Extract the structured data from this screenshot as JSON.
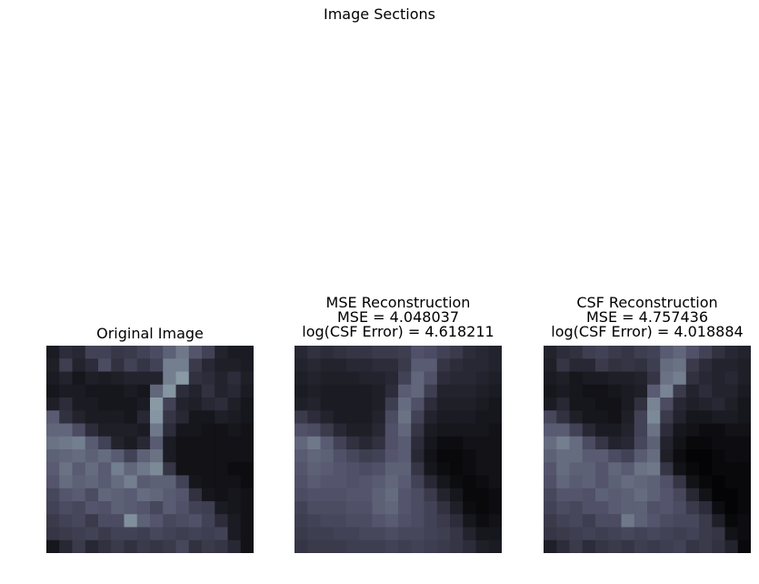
{
  "suptitle": "Image Sections",
  "colors": {
    "colormap": "bone"
  },
  "chart_data": [
    {
      "type": "heatmap",
      "title_lines": [
        "Original Image"
      ],
      "colormap": "bone",
      "value_range": [
        0,
        1
      ],
      "grid": false,
      "axes_visible": false,
      "values": [
        [
          0.12,
          0.2,
          0.18,
          0.3,
          0.3,
          0.25,
          0.26,
          0.3,
          0.34,
          0.42,
          0.5,
          0.38,
          0.3,
          0.16,
          0.12,
          0.12
        ],
        [
          0.14,
          0.28,
          0.16,
          0.2,
          0.34,
          0.22,
          0.3,
          0.24,
          0.3,
          0.52,
          0.52,
          0.26,
          0.18,
          0.14,
          0.14,
          0.12
        ],
        [
          0.12,
          0.16,
          0.1,
          0.14,
          0.12,
          0.14,
          0.16,
          0.16,
          0.16,
          0.52,
          0.62,
          0.22,
          0.2,
          0.16,
          0.2,
          0.14
        ],
        [
          0.1,
          0.12,
          0.12,
          0.1,
          0.1,
          0.1,
          0.12,
          0.1,
          0.44,
          0.6,
          0.2,
          0.16,
          0.22,
          0.16,
          0.18,
          0.12
        ],
        [
          0.14,
          0.2,
          0.12,
          0.12,
          0.1,
          0.1,
          0.1,
          0.12,
          0.62,
          0.3,
          0.16,
          0.14,
          0.18,
          0.2,
          0.14,
          0.1
        ],
        [
          0.4,
          0.22,
          0.16,
          0.12,
          0.12,
          0.12,
          0.1,
          0.18,
          0.6,
          0.24,
          0.18,
          0.1,
          0.1,
          0.14,
          0.12,
          0.1
        ],
        [
          0.44,
          0.44,
          0.34,
          0.2,
          0.14,
          0.14,
          0.14,
          0.12,
          0.5,
          0.2,
          0.1,
          0.1,
          0.08,
          0.08,
          0.1,
          0.08
        ],
        [
          0.48,
          0.5,
          0.52,
          0.4,
          0.3,
          0.16,
          0.12,
          0.18,
          0.4,
          0.12,
          0.08,
          0.08,
          0.08,
          0.08,
          0.08,
          0.08
        ],
        [
          0.42,
          0.44,
          0.46,
          0.42,
          0.46,
          0.4,
          0.3,
          0.42,
          0.48,
          0.12,
          0.08,
          0.08,
          0.08,
          0.08,
          0.08,
          0.08
        ],
        [
          0.4,
          0.48,
          0.4,
          0.46,
          0.4,
          0.52,
          0.44,
          0.5,
          0.56,
          0.24,
          0.08,
          0.08,
          0.08,
          0.08,
          0.06,
          0.06
        ],
        [
          0.38,
          0.46,
          0.42,
          0.44,
          0.4,
          0.46,
          0.52,
          0.4,
          0.42,
          0.42,
          0.3,
          0.1,
          0.08,
          0.08,
          0.08,
          0.06
        ],
        [
          0.32,
          0.38,
          0.4,
          0.34,
          0.44,
          0.42,
          0.4,
          0.46,
          0.44,
          0.4,
          0.38,
          0.22,
          0.1,
          0.08,
          0.1,
          0.08
        ],
        [
          0.3,
          0.34,
          0.32,
          0.38,
          0.36,
          0.42,
          0.4,
          0.38,
          0.32,
          0.4,
          0.36,
          0.3,
          0.28,
          0.12,
          0.1,
          0.08
        ],
        [
          0.26,
          0.3,
          0.32,
          0.26,
          0.34,
          0.34,
          0.58,
          0.42,
          0.38,
          0.32,
          0.34,
          0.36,
          0.3,
          0.2,
          0.12,
          0.08
        ],
        [
          0.24,
          0.26,
          0.28,
          0.3,
          0.26,
          0.3,
          0.3,
          0.28,
          0.32,
          0.3,
          0.28,
          0.3,
          0.28,
          0.3,
          0.12,
          0.08
        ],
        [
          0.1,
          0.18,
          0.26,
          0.18,
          0.22,
          0.26,
          0.22,
          0.26,
          0.24,
          0.26,
          0.32,
          0.22,
          0.26,
          0.24,
          0.18,
          0.08
        ]
      ]
    },
    {
      "type": "heatmap",
      "title_lines": [
        "MSE Reconstruction",
        "MSE = 4.048037",
        "log(CSF Error) = 4.618211"
      ],
      "colormap": "bone",
      "value_range": [
        0,
        1
      ],
      "grid": false,
      "axes_visible": false,
      "values": [
        [
          0.18,
          0.22,
          0.2,
          0.22,
          0.24,
          0.24,
          0.26,
          0.26,
          0.28,
          0.36,
          0.34,
          0.3,
          0.26,
          0.2,
          0.18,
          0.16
        ],
        [
          0.16,
          0.18,
          0.16,
          0.16,
          0.18,
          0.18,
          0.2,
          0.2,
          0.26,
          0.4,
          0.4,
          0.24,
          0.2,
          0.18,
          0.18,
          0.16
        ],
        [
          0.14,
          0.16,
          0.14,
          0.14,
          0.14,
          0.16,
          0.16,
          0.18,
          0.3,
          0.44,
          0.36,
          0.2,
          0.18,
          0.18,
          0.16,
          0.14
        ],
        [
          0.12,
          0.14,
          0.12,
          0.12,
          0.12,
          0.12,
          0.14,
          0.2,
          0.4,
          0.44,
          0.28,
          0.16,
          0.16,
          0.16,
          0.14,
          0.12
        ],
        [
          0.14,
          0.16,
          0.12,
          0.12,
          0.12,
          0.12,
          0.14,
          0.28,
          0.46,
          0.36,
          0.2,
          0.14,
          0.14,
          0.14,
          0.12,
          0.1
        ],
        [
          0.26,
          0.2,
          0.16,
          0.12,
          0.12,
          0.12,
          0.16,
          0.34,
          0.48,
          0.3,
          0.16,
          0.12,
          0.12,
          0.12,
          0.1,
          0.1
        ],
        [
          0.36,
          0.34,
          0.26,
          0.18,
          0.14,
          0.14,
          0.18,
          0.36,
          0.44,
          0.24,
          0.12,
          0.1,
          0.1,
          0.1,
          0.1,
          0.08
        ],
        [
          0.44,
          0.5,
          0.4,
          0.3,
          0.22,
          0.18,
          0.22,
          0.36,
          0.4,
          0.2,
          0.1,
          0.06,
          0.06,
          0.08,
          0.08,
          0.08
        ],
        [
          0.4,
          0.44,
          0.42,
          0.36,
          0.32,
          0.28,
          0.3,
          0.38,
          0.4,
          0.18,
          0.08,
          0.04,
          0.04,
          0.06,
          0.08,
          0.08
        ],
        [
          0.38,
          0.42,
          0.4,
          0.38,
          0.36,
          0.34,
          0.36,
          0.42,
          0.42,
          0.24,
          0.1,
          0.06,
          0.04,
          0.06,
          0.08,
          0.08
        ],
        [
          0.36,
          0.4,
          0.38,
          0.38,
          0.36,
          0.38,
          0.4,
          0.44,
          0.4,
          0.3,
          0.18,
          0.1,
          0.06,
          0.04,
          0.06,
          0.08
        ],
        [
          0.34,
          0.36,
          0.36,
          0.36,
          0.38,
          0.38,
          0.42,
          0.46,
          0.38,
          0.34,
          0.26,
          0.16,
          0.1,
          0.04,
          0.04,
          0.06
        ],
        [
          0.3,
          0.34,
          0.34,
          0.34,
          0.36,
          0.36,
          0.42,
          0.44,
          0.38,
          0.34,
          0.3,
          0.22,
          0.14,
          0.06,
          0.04,
          0.06
        ],
        [
          0.28,
          0.3,
          0.32,
          0.32,
          0.34,
          0.34,
          0.38,
          0.4,
          0.36,
          0.34,
          0.3,
          0.26,
          0.2,
          0.1,
          0.06,
          0.08
        ],
        [
          0.26,
          0.28,
          0.28,
          0.3,
          0.3,
          0.32,
          0.32,
          0.34,
          0.32,
          0.32,
          0.3,
          0.28,
          0.24,
          0.16,
          0.1,
          0.1
        ],
        [
          0.24,
          0.26,
          0.26,
          0.26,
          0.28,
          0.28,
          0.28,
          0.3,
          0.28,
          0.3,
          0.28,
          0.26,
          0.24,
          0.2,
          0.14,
          0.12
        ]
      ]
    },
    {
      "type": "heatmap",
      "title_lines": [
        "CSF Reconstruction",
        "MSE = 4.757436",
        "log(CSF Error) = 4.018884"
      ],
      "colormap": "bone",
      "value_range": [
        0,
        1
      ],
      "grid": false,
      "axes_visible": false,
      "values": [
        [
          0.16,
          0.2,
          0.22,
          0.28,
          0.3,
          0.26,
          0.24,
          0.28,
          0.3,
          0.4,
          0.44,
          0.36,
          0.3,
          0.22,
          0.18,
          0.16
        ],
        [
          0.14,
          0.24,
          0.18,
          0.18,
          0.26,
          0.22,
          0.24,
          0.22,
          0.28,
          0.46,
          0.48,
          0.26,
          0.2,
          0.16,
          0.16,
          0.14
        ],
        [
          0.12,
          0.14,
          0.1,
          0.12,
          0.12,
          0.14,
          0.14,
          0.16,
          0.24,
          0.48,
          0.52,
          0.22,
          0.18,
          0.16,
          0.18,
          0.14
        ],
        [
          0.1,
          0.12,
          0.1,
          0.08,
          0.08,
          0.1,
          0.12,
          0.14,
          0.4,
          0.54,
          0.26,
          0.16,
          0.2,
          0.16,
          0.16,
          0.12
        ],
        [
          0.12,
          0.18,
          0.1,
          0.1,
          0.08,
          0.08,
          0.12,
          0.22,
          0.54,
          0.34,
          0.18,
          0.14,
          0.16,
          0.18,
          0.14,
          0.1
        ],
        [
          0.32,
          0.22,
          0.14,
          0.1,
          0.1,
          0.08,
          0.14,
          0.3,
          0.56,
          0.26,
          0.16,
          0.1,
          0.1,
          0.12,
          0.12,
          0.1
        ],
        [
          0.4,
          0.4,
          0.3,
          0.18,
          0.12,
          0.12,
          0.16,
          0.3,
          0.48,
          0.2,
          0.1,
          0.08,
          0.06,
          0.06,
          0.08,
          0.08
        ],
        [
          0.46,
          0.52,
          0.46,
          0.34,
          0.24,
          0.16,
          0.18,
          0.32,
          0.42,
          0.16,
          0.08,
          0.04,
          0.04,
          0.06,
          0.06,
          0.06
        ],
        [
          0.42,
          0.46,
          0.46,
          0.4,
          0.4,
          0.34,
          0.3,
          0.4,
          0.46,
          0.14,
          0.06,
          0.02,
          0.02,
          0.04,
          0.06,
          0.06
        ],
        [
          0.38,
          0.46,
          0.42,
          0.42,
          0.38,
          0.44,
          0.4,
          0.48,
          0.5,
          0.24,
          0.08,
          0.04,
          0.02,
          0.04,
          0.04,
          0.04
        ],
        [
          0.36,
          0.44,
          0.4,
          0.42,
          0.38,
          0.42,
          0.46,
          0.44,
          0.42,
          0.36,
          0.24,
          0.08,
          0.04,
          0.02,
          0.04,
          0.04
        ],
        [
          0.32,
          0.38,
          0.38,
          0.36,
          0.42,
          0.4,
          0.42,
          0.46,
          0.42,
          0.38,
          0.32,
          0.18,
          0.08,
          0.02,
          0.02,
          0.04
        ],
        [
          0.3,
          0.34,
          0.32,
          0.36,
          0.36,
          0.4,
          0.42,
          0.42,
          0.36,
          0.38,
          0.34,
          0.26,
          0.2,
          0.06,
          0.02,
          0.04
        ],
        [
          0.26,
          0.3,
          0.32,
          0.28,
          0.34,
          0.34,
          0.5,
          0.42,
          0.38,
          0.34,
          0.32,
          0.32,
          0.26,
          0.14,
          0.04,
          0.06
        ],
        [
          0.24,
          0.26,
          0.28,
          0.3,
          0.28,
          0.3,
          0.32,
          0.3,
          0.32,
          0.3,
          0.28,
          0.3,
          0.26,
          0.24,
          0.08,
          0.06
        ],
        [
          0.14,
          0.2,
          0.26,
          0.2,
          0.24,
          0.26,
          0.24,
          0.28,
          0.26,
          0.28,
          0.3,
          0.24,
          0.26,
          0.22,
          0.16,
          0.04
        ]
      ]
    }
  ]
}
